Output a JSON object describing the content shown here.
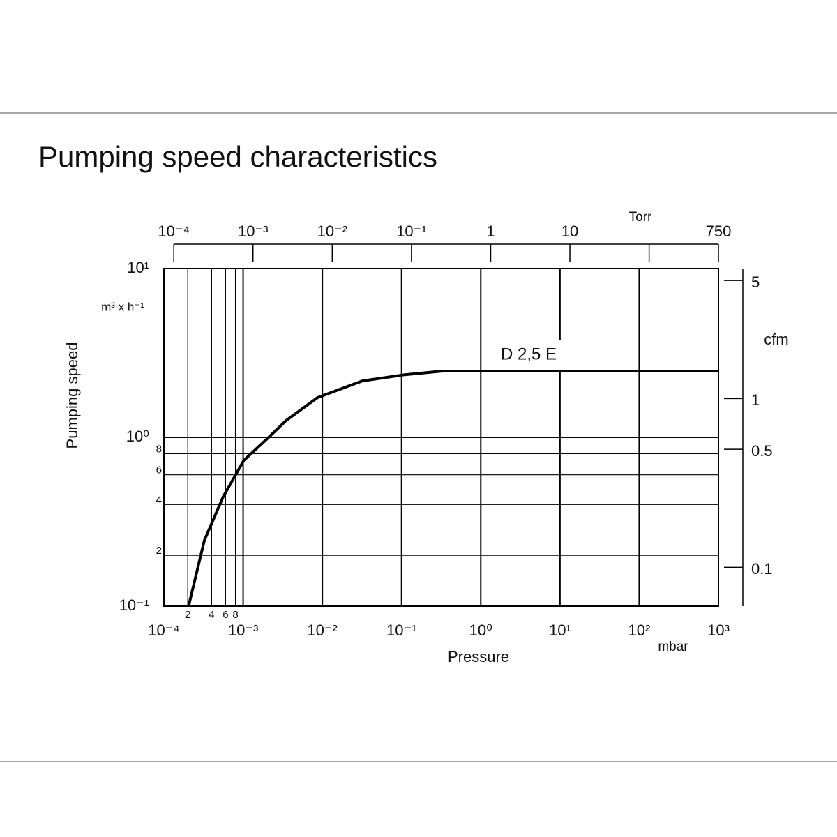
{
  "chart_data": {
    "type": "line",
    "title": "Pumping speed characteristics",
    "x_label": "Pressure",
    "x_unit": "mbar",
    "y_label": "Pumping speed",
    "y_unit": "m³ x h⁻¹",
    "x2_unit": "Torr",
    "y2_unit": "cfm",
    "x_scale": "log",
    "y_scale": "log",
    "grid": true,
    "xlim": [
      0.0001,
      1000
    ],
    "xticks": [
      {
        "value": 0.0001,
        "label": "10⁻⁴"
      },
      {
        "value": 0.0002,
        "label": "2"
      },
      {
        "value": 0.0004,
        "label": "4"
      },
      {
        "value": 0.0006,
        "label": "6"
      },
      {
        "value": 0.0008,
        "label": "8"
      },
      {
        "value": 0.001,
        "label": "10⁻³"
      },
      {
        "value": 0.01,
        "label": "10⁻²"
      },
      {
        "value": 0.1,
        "label": "10⁻¹"
      },
      {
        "value": 1,
        "label": "10⁰"
      },
      {
        "value": 10,
        "label": "10¹"
      },
      {
        "value": 100,
        "label": "10²"
      },
      {
        "value": 1000,
        "label": "10³"
      }
    ],
    "ylim": [
      0.1,
      10
    ],
    "yticks": [
      {
        "value": 0.1,
        "label": "10⁻¹"
      },
      {
        "value": 0.2,
        "label": "2"
      },
      {
        "value": 0.4,
        "label": "4"
      },
      {
        "value": 0.6,
        "label": "6"
      },
      {
        "value": 0.8,
        "label": "8"
      },
      {
        "value": 1,
        "label": "10⁰"
      },
      {
        "value": 10,
        "label": "10¹"
      }
    ],
    "x2lim": [
      7.5e-05,
      750
    ],
    "x2ticks": [
      {
        "value": 0.0001,
        "label": "10⁻⁴"
      },
      {
        "value": 0.001,
        "label": "10⁻³"
      },
      {
        "value": 0.01,
        "label": "10⁻²"
      },
      {
        "value": 0.1,
        "label": "10⁻¹"
      },
      1,
      10,
      {
        "value": 100,
        "label": null
      },
      750
    ],
    "y2lim": [
      0.0589,
      5.886
    ],
    "y2ticks": [
      0.1,
      0.5,
      1,
      5
    ],
    "series": [
      {
        "name": "D 2,5 E",
        "color": "#000000",
        "x": [
          0.000205,
          0.000324,
          0.00056,
          0.00102,
          0.0021,
          0.0035,
          0.0087,
          0.032,
          0.11,
          0.33,
          1000
        ],
        "values": [
          0.1,
          0.245,
          0.445,
          0.73,
          1.0,
          1.26,
          1.72,
          2.16,
          2.35,
          2.47,
          2.47
        ]
      }
    ]
  }
}
